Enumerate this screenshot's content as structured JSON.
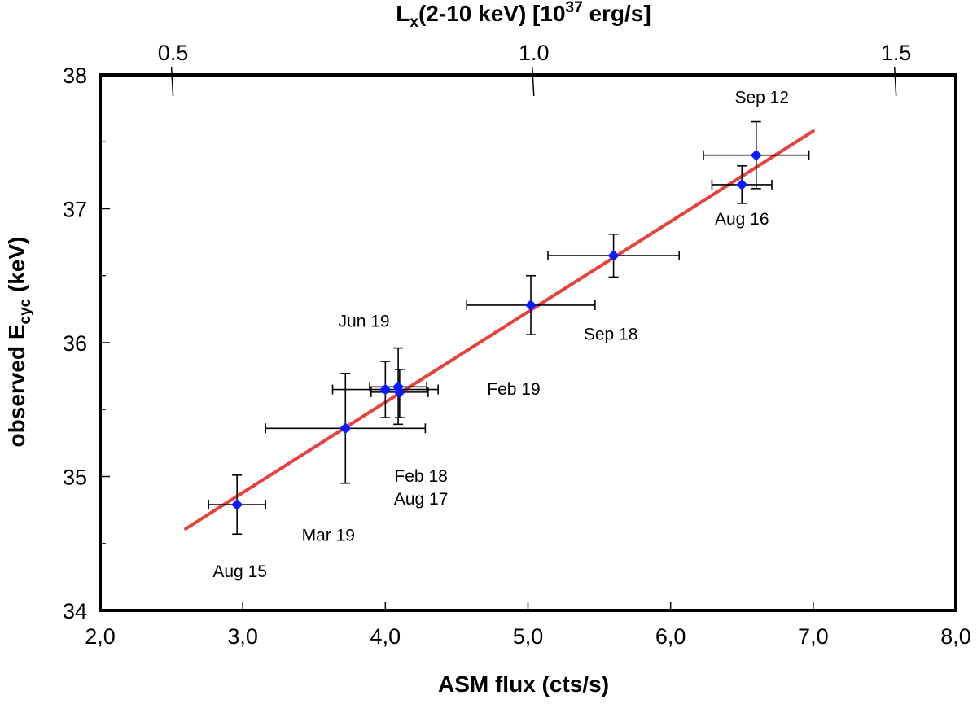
{
  "chart_data": {
    "type": "scatter",
    "xlabel": "ASM flux  (cts/s)",
    "ylabel": {
      "main": "observed E",
      "sub": "cyc",
      "tail": " (keV)"
    },
    "top_axis_label": {
      "a": "L",
      "sub": "x",
      "b": "(2-10 keV)  [10",
      "sup": "37",
      "c": " erg/s]"
    },
    "xlim": [
      2.0,
      8.0
    ],
    "ylim": [
      34,
      38
    ],
    "x_ticks": [
      "2,0",
      "3,0",
      "4,0",
      "5,0",
      "6,0",
      "7,0",
      "8,0"
    ],
    "y_ticks": [
      "34",
      "35",
      "36",
      "37",
      "38"
    ],
    "top_ticks": [
      {
        "label": "0.5",
        "x": 2.5
      },
      {
        "label": "1.0",
        "x": 5.03
      },
      {
        "label": "1.5",
        "x": 7.57
      }
    ],
    "points": [
      {
        "x": 2.96,
        "y": 34.79,
        "xerr": 0.2,
        "yerr_lo": 0.22,
        "yerr_hi": 0.22
      },
      {
        "x": 3.72,
        "y": 35.36,
        "xerr": 0.56,
        "yerr_lo": 0.41,
        "yerr_hi": 0.41
      },
      {
        "x": 4.0,
        "y": 35.65,
        "xerr": 0.37,
        "yerr_lo": 0.21,
        "yerr_hi": 0.21
      },
      {
        "x": 4.09,
        "y": 35.67,
        "xerr": 0.2,
        "yerr_lo": 0.28,
        "yerr_hi": 0.29
      },
      {
        "x": 4.1,
        "y": 35.63,
        "xerr": 0.2,
        "yerr_lo": 0.19,
        "yerr_hi": 0.17
      },
      {
        "x": 5.02,
        "y": 36.28,
        "xerr": 0.45,
        "yerr_lo": 0.22,
        "yerr_hi": 0.22
      },
      {
        "x": 5.6,
        "y": 36.65,
        "xerr": 0.46,
        "yerr_lo": 0.16,
        "yerr_hi": 0.16
      },
      {
        "x": 6.5,
        "y": 37.18,
        "xerr": 0.21,
        "yerr_lo": 0.14,
        "yerr_hi": 0.14
      },
      {
        "x": 6.6,
        "y": 37.4,
        "xerr": 0.37,
        "yerr_lo": 0.25,
        "yerr_hi": 0.25
      }
    ],
    "fit_line": {
      "x": [
        2.6,
        7.0
      ],
      "y": [
        34.61,
        37.58
      ]
    },
    "annotations": [
      {
        "text": "Sep 12",
        "x": 6.64,
        "y": 37.79
      },
      {
        "text": "Aug 16",
        "x": 6.5,
        "y": 36.88
      },
      {
        "text": "Jun 19",
        "x": 3.85,
        "y": 36.12
      },
      {
        "text": "Sep 18",
        "x": 5.58,
        "y": 36.02
      },
      {
        "text": "Feb 19",
        "x": 4.9,
        "y": 35.61
      },
      {
        "text": "Feb 18",
        "x": 4.25,
        "y": 34.96
      },
      {
        "text": "Aug 17",
        "x": 4.25,
        "y": 34.79
      },
      {
        "text": "Mar 19",
        "x": 3.6,
        "y": 34.52
      },
      {
        "text": "Aug 15",
        "x": 2.98,
        "y": 34.25
      }
    ],
    "colors": {
      "marker": "#0a1cff",
      "fit": "#e8403a",
      "errorbar": "#000000",
      "axes": "#000000"
    },
    "grid": false
  }
}
